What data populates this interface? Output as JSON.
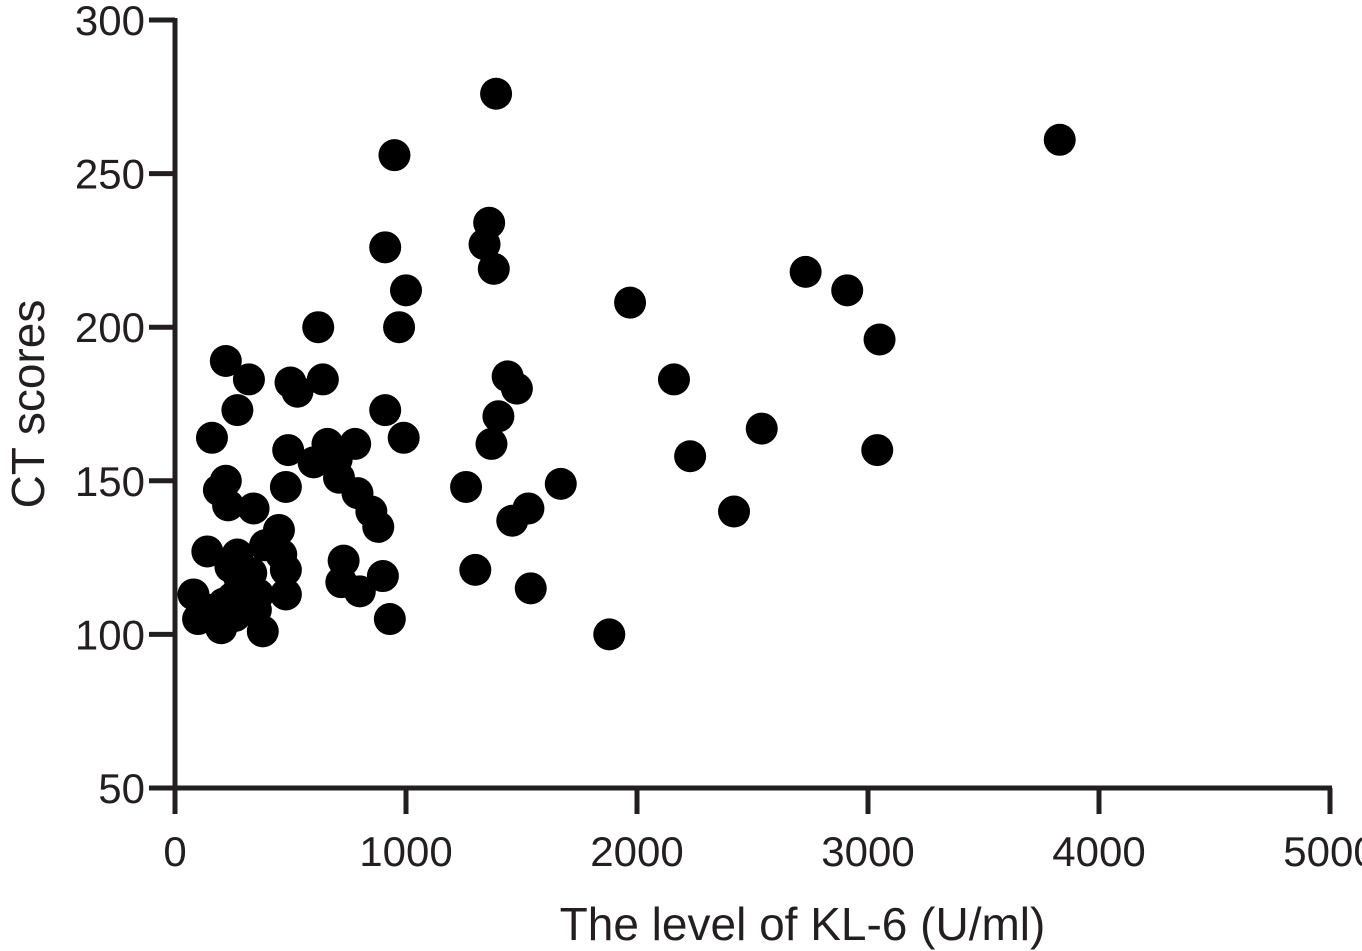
{
  "chart_data": {
    "type": "scatter",
    "xlabel": "The level of KL-6 (U/ml)",
    "ylabel": "CT scores",
    "xlim": [
      0,
      5000
    ],
    "ylim": [
      50,
      300
    ],
    "x_ticks": [
      "0",
      "1000",
      "2000",
      "3000",
      "4000",
      "5000"
    ],
    "y_ticks": [
      "50",
      "100",
      "150",
      "200",
      "250",
      "300"
    ],
    "grid": false,
    "marker_color": "#000000",
    "points": [
      {
        "x": 80,
        "y": 113
      },
      {
        "x": 100,
        "y": 105
      },
      {
        "x": 150,
        "y": 108
      },
      {
        "x": 140,
        "y": 127
      },
      {
        "x": 160,
        "y": 164
      },
      {
        "x": 190,
        "y": 147
      },
      {
        "x": 200,
        "y": 102
      },
      {
        "x": 210,
        "y": 110
      },
      {
        "x": 220,
        "y": 189
      },
      {
        "x": 220,
        "y": 150
      },
      {
        "x": 230,
        "y": 142
      },
      {
        "x": 240,
        "y": 122
      },
      {
        "x": 250,
        "y": 112
      },
      {
        "x": 260,
        "y": 106
      },
      {
        "x": 270,
        "y": 126
      },
      {
        "x": 270,
        "y": 173
      },
      {
        "x": 280,
        "y": 118
      },
      {
        "x": 290,
        "y": 115
      },
      {
        "x": 300,
        "y": 110
      },
      {
        "x": 320,
        "y": 183
      },
      {
        "x": 330,
        "y": 120
      },
      {
        "x": 340,
        "y": 141
      },
      {
        "x": 350,
        "y": 108
      },
      {
        "x": 360,
        "y": 113
      },
      {
        "x": 380,
        "y": 101
      },
      {
        "x": 390,
        "y": 129
      },
      {
        "x": 450,
        "y": 134
      },
      {
        "x": 460,
        "y": 126
      },
      {
        "x": 480,
        "y": 121
      },
      {
        "x": 480,
        "y": 113
      },
      {
        "x": 480,
        "y": 148
      },
      {
        "x": 490,
        "y": 160
      },
      {
        "x": 500,
        "y": 182
      },
      {
        "x": 530,
        "y": 179
      },
      {
        "x": 600,
        "y": 156
      },
      {
        "x": 620,
        "y": 200
      },
      {
        "x": 640,
        "y": 183
      },
      {
        "x": 660,
        "y": 162
      },
      {
        "x": 700,
        "y": 157
      },
      {
        "x": 710,
        "y": 151
      },
      {
        "x": 720,
        "y": 117
      },
      {
        "x": 730,
        "y": 124
      },
      {
        "x": 780,
        "y": 162
      },
      {
        "x": 790,
        "y": 146
      },
      {
        "x": 800,
        "y": 114
      },
      {
        "x": 850,
        "y": 140
      },
      {
        "x": 880,
        "y": 135
      },
      {
        "x": 900,
        "y": 119
      },
      {
        "x": 910,
        "y": 173
      },
      {
        "x": 910,
        "y": 226
      },
      {
        "x": 930,
        "y": 105
      },
      {
        "x": 950,
        "y": 256
      },
      {
        "x": 970,
        "y": 200
      },
      {
        "x": 990,
        "y": 164
      },
      {
        "x": 1000,
        "y": 212
      },
      {
        "x": 1260,
        "y": 148
      },
      {
        "x": 1300,
        "y": 121
      },
      {
        "x": 1340,
        "y": 227
      },
      {
        "x": 1360,
        "y": 234
      },
      {
        "x": 1370,
        "y": 162
      },
      {
        "x": 1380,
        "y": 219
      },
      {
        "x": 1390,
        "y": 276
      },
      {
        "x": 1400,
        "y": 171
      },
      {
        "x": 1440,
        "y": 184
      },
      {
        "x": 1460,
        "y": 137
      },
      {
        "x": 1480,
        "y": 180
      },
      {
        "x": 1530,
        "y": 141
      },
      {
        "x": 1540,
        "y": 115
      },
      {
        "x": 1670,
        "y": 149
      },
      {
        "x": 1880,
        "y": 100
      },
      {
        "x": 1970,
        "y": 208
      },
      {
        "x": 2160,
        "y": 183
      },
      {
        "x": 2230,
        "y": 158
      },
      {
        "x": 2420,
        "y": 140
      },
      {
        "x": 2540,
        "y": 167
      },
      {
        "x": 2730,
        "y": 218
      },
      {
        "x": 2910,
        "y": 212
      },
      {
        "x": 3040,
        "y": 160
      },
      {
        "x": 3050,
        "y": 196
      },
      {
        "x": 3830,
        "y": 261
      }
    ]
  }
}
